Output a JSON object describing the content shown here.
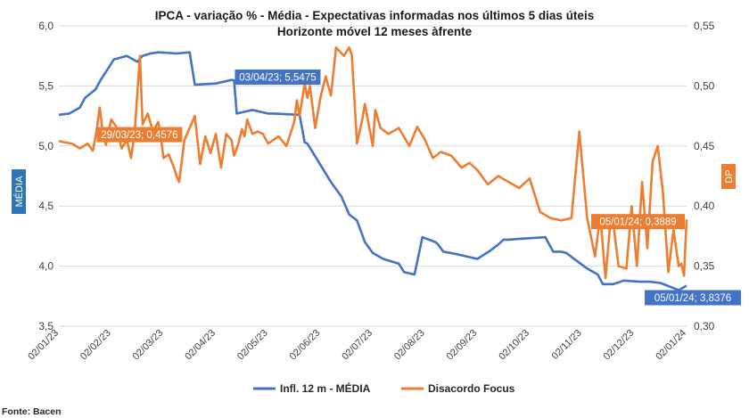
{
  "colors": {
    "media": "#4472C4",
    "dp": "#ED7D31",
    "grid": "#D9D9D9"
  },
  "chart_data": {
    "type": "line",
    "title": "IPCA - variação % - Média - Expectativas informadas nos últimos 5 dias úteis",
    "subtitle": "Horizonte móvel 12 meses àfrente",
    "ylabel_left": "MÉDIA",
    "ylabel_right": "DP",
    "source": "Fonte: Bacen",
    "ylim_left": [
      3.5,
      6.0
    ],
    "ylim_right": [
      0.3,
      0.55
    ],
    "yticks_left": [
      "3,5",
      "4,0",
      "4,5",
      "5,0",
      "5,5",
      "6,0"
    ],
    "yticks_right": [
      "0,30",
      "0,35",
      "0,40",
      "0,45",
      "0,50",
      "0,55"
    ],
    "xticks": [
      "02/01/23",
      "02/02/23",
      "02/03/23",
      "02/04/23",
      "02/05/23",
      "02/06/23",
      "02/07/23",
      "02/08/23",
      "02/09/23",
      "02/10/23",
      "02/11/23",
      "02/12/23",
      "02/01/24"
    ],
    "grid": true,
    "legend_position": "bottom",
    "series": [
      {
        "name": "Infl. 12 m - MÉDIA",
        "axis": "left",
        "color": "#4472C4",
        "x": [
          0,
          0.2,
          0.4,
          0.5,
          0.7,
          0.8,
          0.95,
          1.05,
          1.3,
          1.5,
          1.6,
          1.75,
          1.9,
          2.25,
          2.5,
          2.6,
          3.0,
          3.1,
          3.3,
          3.35,
          3.4,
          3.7,
          4.0,
          4.1,
          4.6,
          4.7,
          4.75,
          5.2,
          5.4,
          5.55,
          5.7,
          5.85,
          6.0,
          6.2,
          6.5,
          6.6,
          6.8,
          6.95,
          7.2,
          7.25,
          7.35,
          7.6,
          8.0,
          8.25,
          8.4,
          8.5,
          8.6,
          8.9,
          9.3,
          9.45,
          9.6,
          9.7,
          9.85,
          10.1,
          10.3,
          10.4,
          10.6,
          10.8,
          11.1,
          11.3,
          11.5,
          11.85,
          12.0
        ],
        "y": [
          5.26,
          5.27,
          5.32,
          5.4,
          5.47,
          5.55,
          5.65,
          5.72,
          5.75,
          5.7,
          5.75,
          5.77,
          5.78,
          5.77,
          5.78,
          5.51,
          5.52,
          5.53,
          5.55,
          5.5475,
          5.27,
          5.3,
          5.27,
          5.27,
          5.26,
          5.03,
          5.02,
          4.7,
          4.58,
          4.43,
          4.38,
          4.2,
          4.11,
          4.06,
          4.02,
          3.95,
          3.93,
          4.24,
          4.2,
          4.18,
          4.12,
          4.1,
          4.06,
          4.13,
          4.18,
          4.22,
          4.22,
          4.23,
          4.24,
          4.12,
          4.12,
          4.11,
          4.06,
          3.98,
          3.93,
          3.85,
          3.85,
          3.88,
          3.87,
          3.87,
          3.86,
          3.8,
          3.8376
        ]
      },
      {
        "name": "Disacordo Focus",
        "axis": "right",
        "color": "#ED7D31",
        "x": [
          0,
          0.25,
          0.4,
          0.55,
          0.65,
          0.72,
          0.78,
          0.85,
          0.9,
          1.0,
          1.1,
          1.2,
          1.3,
          1.38,
          1.45,
          1.55,
          1.6,
          1.7,
          1.8,
          1.9,
          1.95,
          2.0,
          2.1,
          2.2,
          2.25,
          2.3,
          2.4,
          2.5,
          2.6,
          2.7,
          2.8,
          2.9,
          3.0,
          3.1,
          3.2,
          3.3,
          3.35,
          3.4,
          3.45,
          3.5,
          3.55,
          3.6,
          3.7,
          3.8,
          3.9,
          4.0,
          4.2,
          4.35,
          4.5,
          4.55,
          4.6,
          4.7,
          4.75,
          4.8,
          4.9,
          5.0,
          5.1,
          5.2,
          5.3,
          5.45,
          5.55,
          5.6,
          5.7,
          5.75,
          5.8,
          5.85,
          6.0,
          6.05,
          6.15,
          6.3,
          6.5,
          6.7,
          6.85,
          7.0,
          7.15,
          7.3,
          7.5,
          7.7,
          7.85,
          8.0,
          8.2,
          8.4,
          8.6,
          8.8,
          9.0,
          9.2,
          9.4,
          9.6,
          9.8,
          9.95,
          10.1,
          10.25,
          10.35,
          10.45,
          10.55,
          10.6,
          10.7,
          10.85,
          10.95,
          11.05,
          11.15,
          11.25,
          11.35,
          11.45,
          11.55,
          11.65,
          11.75,
          11.85,
          11.9,
          11.95,
          12.0
        ],
        "y": [
          0.454,
          0.452,
          0.448,
          0.452,
          0.446,
          0.462,
          0.482,
          0.458,
          0.451,
          0.472,
          0.466,
          0.448,
          0.455,
          0.44,
          0.462,
          0.525,
          0.468,
          0.477,
          0.462,
          0.47,
          0.4576,
          0.44,
          0.443,
          0.432,
          0.425,
          0.42,
          0.455,
          0.465,
          0.475,
          0.435,
          0.458,
          0.444,
          0.46,
          0.432,
          0.46,
          0.455,
          0.442,
          0.448,
          0.455,
          0.464,
          0.458,
          0.472,
          0.46,
          0.462,
          0.46,
          0.452,
          0.458,
          0.45,
          0.47,
          0.488,
          0.475,
          0.502,
          0.49,
          0.5,
          0.465,
          0.49,
          0.508,
          0.492,
          0.532,
          0.525,
          0.532,
          0.526,
          0.452,
          0.462,
          0.472,
          0.485,
          0.45,
          0.48,
          0.465,
          0.46,
          0.465,
          0.45,
          0.466,
          0.455,
          0.44,
          0.445,
          0.442,
          0.432,
          0.436,
          0.43,
          0.418,
          0.425,
          0.42,
          0.415,
          0.423,
          0.395,
          0.39,
          0.388,
          0.39,
          0.462,
          0.39,
          0.358,
          0.392,
          0.34,
          0.39,
          0.385,
          0.35,
          0.348,
          0.4,
          0.35,
          0.42,
          0.365,
          0.437,
          0.45,
          0.41,
          0.345,
          0.38,
          0.35,
          0.352,
          0.342,
          0.3889
        ]
      }
    ],
    "annotations": [
      {
        "label": "03/04/23; 5,5475",
        "series": "Infl. 12 m - MÉDIA",
        "x": 3.4,
        "y": 5.5475
      },
      {
        "label": "29/03/23; 0,4576",
        "series": "Disacordo Focus",
        "x": 1.95,
        "y": 0.4576
      },
      {
        "label": "05/01/24; 0,3889",
        "series": "Disacordo Focus",
        "x": 12.0,
        "y": 0.3889
      },
      {
        "label": "05/01/24; 3,8376",
        "series": "Infl. 12 m - MÉDIA",
        "x": 12.0,
        "y": 3.8376
      }
    ]
  }
}
